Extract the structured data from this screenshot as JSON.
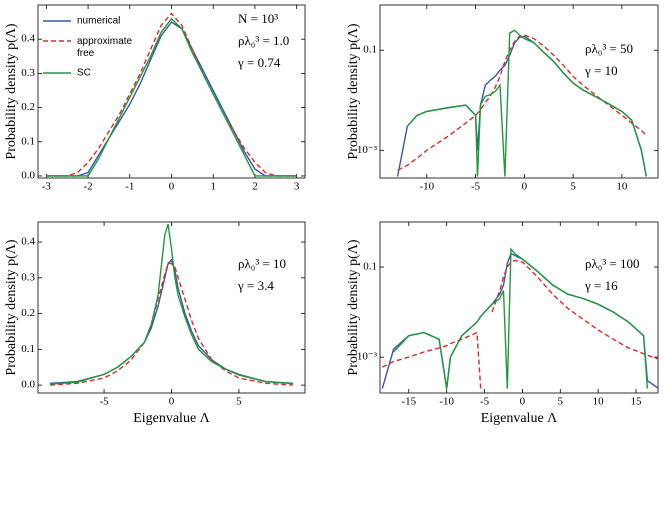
{
  "chart_data": [
    {
      "type": "line",
      "ylabel": "Probability density p(Λ)",
      "log_y": false,
      "annotations": [
        "N = 10³",
        "ρλ₀³ = 1.0",
        "γ = 0.74"
      ],
      "xlim": [
        -3.2,
        3.2
      ],
      "ylim": [
        -0.006,
        0.5
      ],
      "xticks": [
        -3,
        -2,
        -1,
        0,
        1,
        2,
        3
      ],
      "yticks": [
        {
          "value": 0,
          "label": "0.0"
        },
        0.1,
        0.2,
        0.3,
        0.4
      ],
      "x": [
        -3,
        -2.75,
        -2.5,
        -2.25,
        -2,
        -1.75,
        -1.5,
        -1.25,
        -1,
        -0.75,
        -0.5,
        -0.25,
        0,
        0.25,
        0.5,
        0.75,
        1,
        1.25,
        1.5,
        1.75,
        2,
        2.25,
        2.5,
        2.75,
        3
      ],
      "series": [
        {
          "name": "numerical",
          "color": "#3a56a8",
          "dash": false,
          "values": [
            0,
            0,
            0,
            0,
            0.01,
            0.06,
            0.11,
            0.16,
            0.21,
            0.27,
            0.34,
            0.41,
            0.45,
            0.43,
            0.37,
            0.31,
            0.25,
            0.19,
            0.13,
            0.07,
            0.02,
            0,
            0,
            0,
            0
          ]
        },
        {
          "name": "approximate free",
          "color": "#d92b2b",
          "dash": true,
          "values": [
            0,
            0,
            0,
            0.01,
            0.04,
            0.08,
            0.13,
            0.18,
            0.24,
            0.3,
            0.37,
            0.44,
            0.475,
            0.44,
            0.37,
            0.3,
            0.24,
            0.18,
            0.13,
            0.08,
            0.04,
            0.01,
            0,
            0,
            0
          ]
        },
        {
          "name": "SC",
          "color": "#1f9a3a",
          "dash": false,
          "values": [
            0,
            0,
            0,
            0,
            0,
            0.05,
            0.11,
            0.17,
            0.23,
            0.29,
            0.35,
            0.42,
            0.46,
            0.43,
            0.36,
            0.3,
            0.24,
            0.18,
            0.12,
            0.06,
            0,
            0,
            0,
            0,
            0
          ]
        }
      ]
    },
    {
      "type": "line",
      "ylabel": "Probability density p(Λ)",
      "log_y": true,
      "annotations": [
        "ρλ₀³ = 50",
        "γ = 10"
      ],
      "xlim": [
        -14.8,
        13.7
      ],
      "ylim": [
        0.00028,
        0.8
      ],
      "xticks": [
        -10,
        -5,
        0,
        5,
        10
      ],
      "yticks": [
        {
          "value": 0.001,
          "label": "10⁻³"
        },
        0.1
      ],
      "x": [
        -13,
        -12,
        -11,
        -10,
        -8,
        -6,
        -5,
        -4.8,
        -4.5,
        -4,
        -3.5,
        -3,
        -2.5,
        -2,
        -1.5,
        -1,
        -0.5,
        0,
        1,
        2,
        3,
        4,
        5,
        6,
        8,
        10,
        11,
        12,
        12.5
      ],
      "series": [
        {
          "color": "#3a56a8",
          "dash": false,
          "values": [
            0.0003,
            0.003,
            0.005,
            0.006,
            0.007,
            0.008,
            0.005,
            0.001,
            0.008,
            0.02,
            0.025,
            0.03,
            0.04,
            0.05,
            0.08,
            0.14,
            0.18,
            0.19,
            0.14,
            0.09,
            0.06,
            0.035,
            0.022,
            0.016,
            0.01,
            0.006,
            0.004,
            0.001,
            0.0003
          ]
        },
        {
          "color": "#d92b2b",
          "dash": true,
          "values": [
            0.0004,
            0.0005,
            0.0007,
            0.001,
            0.0018,
            0.0035,
            0.005,
            0.0055,
            0.0065,
            0.009,
            0.012,
            0.018,
            0.03,
            0.06,
            0.1,
            0.15,
            0.19,
            0.2,
            0.17,
            0.12,
            0.08,
            0.05,
            0.03,
            0.02,
            0.01,
            0.005,
            0.0035,
            0.0025,
            0.002
          ]
        },
        {
          "color": "#1f9a3a",
          "dash": false,
          "values": [
            null,
            0.003,
            0.005,
            0.006,
            0.007,
            0.008,
            0.005,
            0.0003,
            0.008,
            0.012,
            0.013,
            0.015,
            0.02,
            0.0003,
            0.22,
            0.25,
            0.2,
            0.17,
            0.14,
            0.09,
            0.06,
            0.035,
            0.022,
            0.016,
            0.01,
            0.006,
            0.004,
            0.001,
            0.0003
          ]
        }
      ]
    },
    {
      "type": "line",
      "ylabel": "Probability density p(Λ)",
      "xlabel": "Eigenvalue Λ",
      "log_y": false,
      "annotations": [
        "ρλ₀³ = 10",
        "γ = 3.4"
      ],
      "xlim": [
        -9.9,
        9.9
      ],
      "ylim": [
        -0.022,
        0.456
      ],
      "xticks": [
        -5,
        0,
        5
      ],
      "yticks": [
        {
          "value": 0,
          "label": "0.0"
        },
        0.1,
        0.2,
        0.3,
        0.4
      ],
      "x": [
        -9,
        -7,
        -5,
        -4,
        -3,
        -2,
        -1.5,
        -1,
        -0.5,
        -0.25,
        0,
        0.25,
        0.5,
        1,
        1.5,
        2,
        3,
        4,
        5,
        7,
        9
      ],
      "series": [
        {
          "color": "#3a56a8",
          "dash": false,
          "values": [
            0.005,
            0.01,
            0.03,
            0.05,
            0.08,
            0.12,
            0.16,
            0.22,
            0.3,
            0.34,
            0.35,
            0.32,
            0.27,
            0.2,
            0.15,
            0.11,
            0.07,
            0.045,
            0.03,
            0.01,
            0.005
          ]
        },
        {
          "color": "#d92b2b",
          "dash": true,
          "values": [
            0,
            0.005,
            0.02,
            0.04,
            0.07,
            0.12,
            0.17,
            0.24,
            0.31,
            0.34,
            0.34,
            0.33,
            0.3,
            0.24,
            0.18,
            0.13,
            0.07,
            0.04,
            0.02,
            0.005,
            0
          ]
        },
        {
          "color": "#1f9a3a",
          "dash": false,
          "values": [
            0.003,
            0.008,
            0.03,
            0.05,
            0.08,
            0.12,
            0.17,
            0.25,
            0.42,
            0.45,
            0.38,
            0.3,
            0.25,
            0.19,
            0.14,
            0.1,
            0.065,
            0.045,
            0.028,
            0.01,
            0.004
          ]
        }
      ]
    },
    {
      "type": "line",
      "ylabel": "Probability density p(Λ)",
      "xlabel": "Eigenvalue Λ",
      "log_y": true,
      "annotations": [
        "ρλ₀³ = 100",
        "γ = 16"
      ],
      "xlim": [
        -18.8,
        17.9
      ],
      "ylim": [
        0.00016,
        1
      ],
      "xticks": [
        -15,
        -10,
        -5,
        0,
        5,
        10,
        15
      ],
      "yticks": [
        {
          "value": 0.001,
          "label": "10⁻³"
        },
        0.1
      ],
      "x": [
        -18.5,
        -17,
        -15,
        -13,
        -11,
        -10,
        -9.5,
        -8,
        -6,
        -5.5,
        -5,
        -4,
        -3,
        -2.5,
        -2,
        -1.5,
        -1,
        0,
        2,
        4,
        6,
        8,
        10,
        12,
        14,
        16,
        16.5,
        18
      ],
      "series": [
        {
          "color": "#3a56a8",
          "dash": false,
          "values": [
            0.0002,
            0.0015,
            0.003,
            0.0035,
            0.0025,
            0.0002,
            0.001,
            0.003,
            0.006,
            0.008,
            0.01,
            0.015,
            0.025,
            0.04,
            0.12,
            0.2,
            0.18,
            0.15,
            0.08,
            0.04,
            0.025,
            0.02,
            0.015,
            0.01,
            0.006,
            0.003,
            0.0003,
            0.0002
          ]
        },
        {
          "color": "#d92b2b",
          "dash": true,
          "values": [
            0.0006,
            0.0008,
            0.001,
            0.0013,
            0.0016,
            0.0018,
            0.002,
            0.0025,
            0.0035,
            0.0002,
            null,
            0.01,
            0.03,
            0.06,
            0.1,
            0.13,
            0.14,
            0.13,
            0.06,
            0.025,
            0.012,
            0.007,
            0.004,
            0.0025,
            0.0016,
            0.0012,
            0.0011,
            0.0009
          ]
        },
        {
          "color": "#1f9a3a",
          "dash": false,
          "values": [
            null,
            0.0013,
            0.003,
            0.0035,
            0.0025,
            0.0002,
            0.001,
            0.003,
            0.006,
            0.008,
            0.01,
            0.015,
            0.02,
            0.03,
            0.0002,
            0.25,
            0.2,
            0.15,
            0.08,
            0.04,
            0.025,
            0.02,
            0.015,
            0.01,
            0.006,
            0.003,
            0.0002,
            null
          ]
        }
      ]
    }
  ]
}
